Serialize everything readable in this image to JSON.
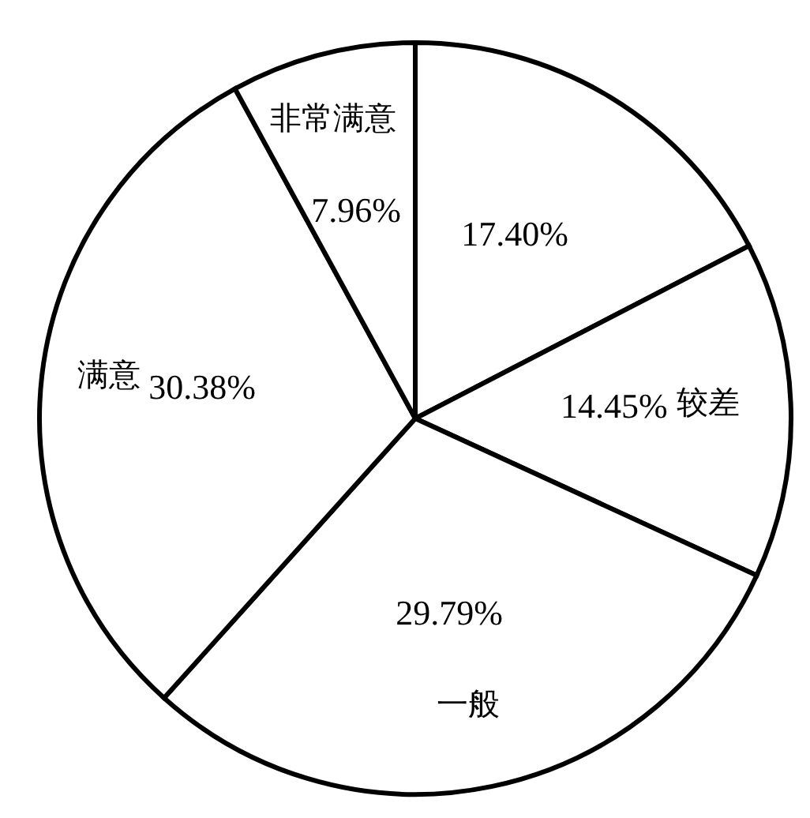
{
  "chart_data": {
    "type": "pie",
    "categories": [
      null,
      "较差",
      "一般",
      "满意",
      "非常满意"
    ],
    "values": [
      17.4,
      14.45,
      29.79,
      30.38,
      7.96
    ],
    "value_labels": [
      "17.40%",
      "14.45%",
      "29.79%",
      "30.38%",
      "7.96%"
    ],
    "colors": [
      "#ffffff",
      "#ffffff",
      "#ffffff",
      "#ffffff",
      "#ffffff"
    ],
    "legend": false
  }
}
